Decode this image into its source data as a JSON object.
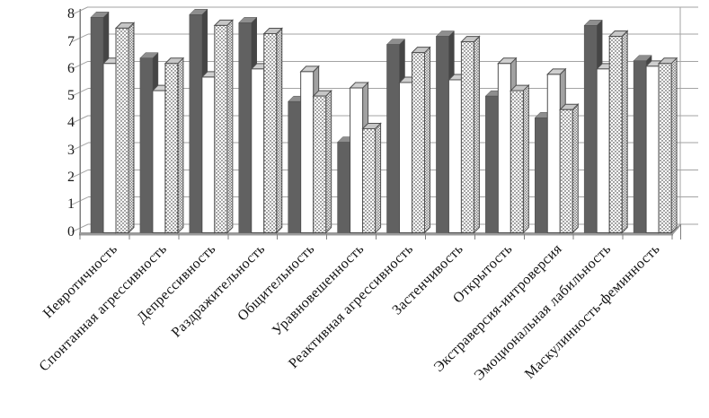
{
  "chart_data": {
    "type": "bar",
    "title": "",
    "effect": "3d-columns",
    "legend": "none",
    "grid": "horizontal",
    "ylim": [
      0,
      8
    ],
    "y_ticks": [
      "0",
      "1",
      "2",
      "3",
      "4",
      "5",
      "6",
      "7",
      "8"
    ],
    "categories": [
      "Невротичность",
      "Спонтанная агрессивность",
      "Депрессивность",
      "Раздражительность",
      "Общительность",
      "Уравновешенность",
      "Реактивная агрессивность",
      "Застенчивость",
      "Открытость",
      "Экстраверсия-интроверсия",
      "Эмоциональная лабильность",
      "Маскулинность-феминность"
    ],
    "series": [
      {
        "style": "solid-dark-gray",
        "values": [
          7.8,
          6.3,
          7.9,
          7.6,
          4.7,
          3.2,
          6.8,
          7.1,
          4.9,
          4.1,
          7.5,
          6.2
        ]
      },
      {
        "style": "plain-white",
        "values": [
          6.1,
          5.1,
          5.6,
          5.9,
          5.8,
          5.2,
          5.4,
          5.5,
          6.1,
          5.7,
          5.9,
          6.0
        ]
      },
      {
        "style": "white-dotted-pattern",
        "values": [
          7.4,
          6.1,
          7.5,
          7.2,
          4.9,
          3.7,
          6.5,
          6.9,
          5.1,
          4.4,
          7.1,
          6.1
        ]
      }
    ],
    "colors": {
      "dark_bar_front": "#616161",
      "dark_bar_top": "#8e8e8e",
      "dark_bar_side": "#454545",
      "white_bar_front": "#ffffff",
      "white_bar_top": "#cfcfcf",
      "white_bar_side": "#a2a2a2",
      "dotted_bar_top": "#c6c6c6",
      "bar_outline": "#4f4f4f",
      "gridline": "#a3a3a3",
      "axis": "#7f7f7f",
      "background": "#ffffff"
    }
  }
}
